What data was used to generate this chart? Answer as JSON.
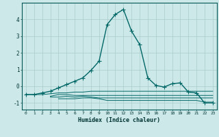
{
  "xlabel": "Humidex (Indice chaleur)",
  "background_color": "#cce8e8",
  "grid_color": "#aacccc",
  "xlim": [
    -0.5,
    23.5
  ],
  "ylim": [
    -1.4,
    5.0
  ],
  "yticks": [
    -1,
    0,
    1,
    2,
    3,
    4
  ],
  "xticks": [
    0,
    1,
    2,
    3,
    4,
    5,
    6,
    7,
    8,
    9,
    10,
    11,
    12,
    13,
    14,
    15,
    16,
    17,
    18,
    19,
    20,
    21,
    22,
    23
  ],
  "series": [
    {
      "x": [
        0,
        1,
        2,
        3,
        4,
        5,
        6,
        7,
        8,
        9,
        10,
        11,
        12,
        13,
        14,
        15,
        16,
        17,
        18,
        19,
        20,
        21,
        22,
        23
      ],
      "y": [
        -0.5,
        -0.5,
        -0.4,
        -0.3,
        -0.1,
        0.1,
        0.3,
        0.5,
        0.95,
        1.5,
        3.7,
        4.3,
        4.6,
        3.3,
        2.5,
        0.5,
        0.05,
        -0.05,
        0.15,
        0.2,
        -0.35,
        -0.4,
        -1.0,
        -1.0
      ],
      "color": "#006666",
      "marker": "+",
      "markersize": 4,
      "linewidth": 1.0
    },
    {
      "x": [
        0,
        1,
        2,
        3,
        4,
        5,
        6,
        7,
        8,
        9,
        10,
        11,
        12,
        13,
        14,
        15,
        16,
        17,
        18,
        19,
        20,
        21,
        22,
        23
      ],
      "y": [
        -0.5,
        -0.5,
        -0.5,
        -0.45,
        -0.4,
        -0.4,
        -0.35,
        -0.35,
        -0.3,
        -0.3,
        -0.3,
        -0.3,
        -0.3,
        -0.3,
        -0.3,
        -0.3,
        -0.3,
        -0.3,
        -0.3,
        -0.3,
        -0.3,
        -0.3,
        -0.3,
        -0.3
      ],
      "color": "#006666",
      "marker": null,
      "linewidth": 0.7
    },
    {
      "x": [
        3,
        4,
        5,
        6,
        7,
        8,
        9,
        10,
        11,
        12,
        13,
        14,
        15,
        16,
        17,
        18,
        19,
        20,
        21,
        22,
        23
      ],
      "y": [
        -0.6,
        -0.5,
        -0.5,
        -0.55,
        -0.55,
        -0.55,
        -0.55,
        -0.55,
        -0.55,
        -0.55,
        -0.55,
        -0.55,
        -0.55,
        -0.55,
        -0.55,
        -0.55,
        -0.55,
        -0.55,
        -0.55,
        -0.55,
        -0.55
      ],
      "color": "#006666",
      "marker": null,
      "linewidth": 0.7
    },
    {
      "x": [
        3,
        4,
        5,
        6,
        7,
        8,
        9,
        10,
        11,
        12,
        13,
        14,
        15,
        16,
        17,
        18,
        19,
        20,
        21,
        22,
        23
      ],
      "y": [
        -0.65,
        -0.65,
        -0.6,
        -0.65,
        -0.6,
        -0.65,
        -0.7,
        -0.7,
        -0.7,
        -0.7,
        -0.7,
        -0.7,
        -0.7,
        -0.7,
        -0.7,
        -0.7,
        -0.7,
        -0.7,
        -0.7,
        -0.7,
        -0.7
      ],
      "color": "#006666",
      "marker": null,
      "linewidth": 0.7
    },
    {
      "x": [
        4,
        5,
        6,
        7,
        8,
        9,
        10,
        11,
        12,
        13,
        14,
        15,
        16,
        17,
        18,
        19,
        20,
        21,
        22,
        23
      ],
      "y": [
        -0.75,
        -0.75,
        -0.75,
        -0.7,
        -0.7,
        -0.75,
        -0.85,
        -0.85,
        -0.85,
        -0.85,
        -0.85,
        -0.85,
        -0.85,
        -0.85,
        -0.85,
        -0.85,
        -0.85,
        -0.85,
        -0.95,
        -0.95
      ],
      "color": "#006666",
      "marker": null,
      "linewidth": 0.7
    }
  ]
}
